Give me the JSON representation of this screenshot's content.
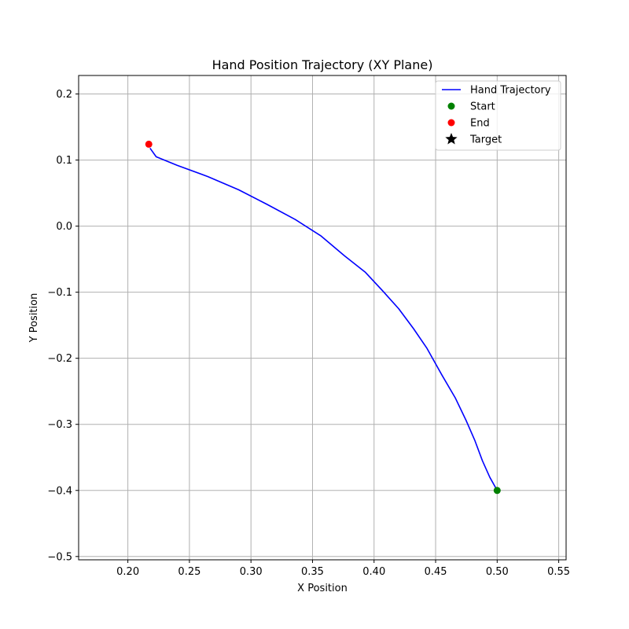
{
  "chart_data": {
    "type": "line",
    "title": "Hand Position Trajectory (XY Plane)",
    "xlabel": "X Position",
    "ylabel": "Y Position",
    "xlim": [
      0.16,
      0.556
    ],
    "ylim": [
      -0.505,
      0.228
    ],
    "xticks": [
      0.2,
      0.25,
      0.3,
      0.35,
      0.4,
      0.45,
      0.5,
      0.55
    ],
    "xtick_labels": [
      "0.20",
      "0.25",
      "0.30",
      "0.35",
      "0.40",
      "0.45",
      "0.50",
      "0.55"
    ],
    "yticks": [
      0.2,
      0.1,
      0.0,
      -0.1,
      -0.2,
      -0.3,
      -0.4,
      -0.5
    ],
    "ytick_labels": [
      "0.2",
      "0.1",
      "0.0",
      "−0.1",
      "−0.2",
      "−0.3",
      "−0.4",
      "−0.5"
    ],
    "grid": true,
    "legend_position": "top-right",
    "series": [
      {
        "name": "Hand Trajectory",
        "kind": "line",
        "color": "#0000ff",
        "x": [
          0.5,
          0.494,
          0.488,
          0.482,
          0.475,
          0.466,
          0.455,
          0.443,
          0.432,
          0.42,
          0.407,
          0.393,
          0.376,
          0.357,
          0.336,
          0.313,
          0.29,
          0.265,
          0.24,
          0.223,
          0.218
        ],
        "y": [
          -0.4,
          -0.38,
          -0.355,
          -0.325,
          -0.295,
          -0.26,
          -0.225,
          -0.185,
          -0.155,
          -0.125,
          -0.098,
          -0.07,
          -0.045,
          -0.015,
          0.01,
          0.033,
          0.055,
          0.075,
          0.092,
          0.105,
          0.118
        ]
      },
      {
        "name": "Start",
        "kind": "marker",
        "marker": "circle",
        "color": "#008000",
        "x": [
          0.5
        ],
        "y": [
          -0.4
        ]
      },
      {
        "name": "End",
        "kind": "marker",
        "marker": "circle",
        "color": "#ff0000",
        "x": [
          0.217
        ],
        "y": [
          0.124
        ]
      },
      {
        "name": "Target",
        "kind": "marker",
        "marker": "star",
        "color": "#000000",
        "x": [],
        "y": []
      }
    ]
  }
}
